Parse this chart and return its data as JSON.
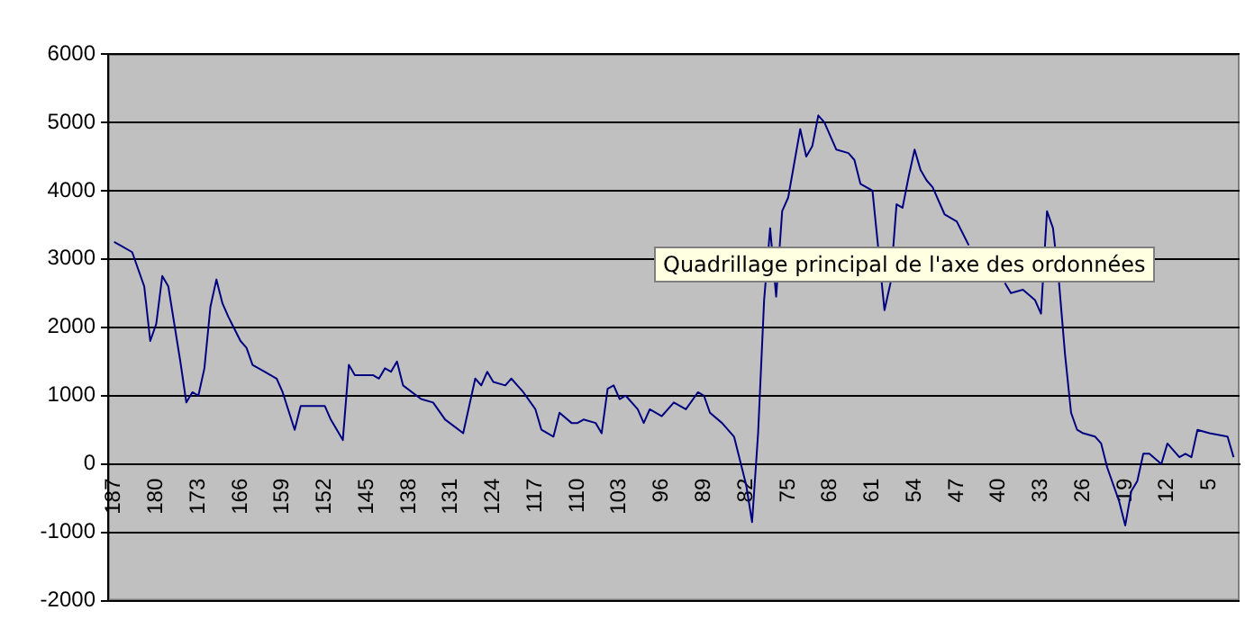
{
  "chart_data": {
    "type": "line",
    "annotations": [
      "Quadrillage principal de l'axe des ordonnées"
    ],
    "x": [
      187,
      186,
      184,
      183,
      182,
      181,
      180,
      179,
      178,
      177,
      176,
      175,
      174,
      173,
      172,
      171,
      170,
      169,
      168,
      166,
      165,
      164,
      162,
      160,
      159,
      157,
      156,
      154,
      152,
      151,
      149,
      148,
      147,
      144,
      143,
      142,
      141,
      140,
      139,
      136,
      134,
      132,
      129,
      127,
      126,
      125,
      124,
      122,
      121,
      120,
      119,
      117,
      116,
      114,
      113,
      111,
      110,
      109,
      107,
      106,
      105,
      104,
      103,
      102,
      100,
      99,
      98,
      96,
      94,
      92,
      90,
      89,
      88,
      86,
      84,
      83,
      82,
      81,
      80,
      79,
      78,
      77,
      76,
      75,
      73,
      72,
      71,
      70,
      69,
      67,
      65,
      64,
      63,
      61,
      59,
      58,
      57,
      56,
      55,
      54,
      53,
      52,
      51,
      49,
      47,
      45,
      43,
      41,
      39,
      38,
      36,
      34,
      33,
      32,
      31,
      30,
      29,
      28,
      27,
      26,
      24,
      23,
      22,
      20,
      19,
      18,
      17,
      16,
      15,
      13,
      12,
      10,
      9,
      8,
      7,
      5,
      2,
      1
    ],
    "series": [
      {
        "color": "#000080",
        "values": [
          3250,
          3200,
          3100,
          2850,
          2600,
          1800,
          2050,
          2750,
          2600,
          2050,
          1500,
          900,
          1050,
          1000,
          1400,
          2300,
          2700,
          2350,
          2150,
          1800,
          1700,
          1450,
          1350,
          1250,
          1050,
          500,
          850,
          850,
          850,
          650,
          350,
          1450,
          1300,
          1300,
          1250,
          1400,
          1350,
          1500,
          1150,
          950,
          900,
          650,
          450,
          1250,
          1150,
          1350,
          1200,
          1150,
          1250,
          1150,
          1050,
          800,
          500,
          400,
          750,
          600,
          600,
          650,
          600,
          450,
          1100,
          1150,
          950,
          1000,
          800,
          600,
          800,
          700,
          900,
          800,
          1050,
          1000,
          750,
          600,
          400,
          50,
          -300,
          -850,
          450,
          2400,
          3450,
          2450,
          3700,
          3900,
          4900,
          4500,
          4650,
          5100,
          5000,
          4600,
          4550,
          4450,
          4100,
          4000,
          2250,
          2650,
          3800,
          3750,
          4200,
          4600,
          4300,
          4150,
          4050,
          3650,
          3550,
          3200,
          null,
          null,
          2650,
          2500,
          2550,
          2400,
          2200,
          3700,
          3450,
          2650,
          1600,
          750,
          500,
          450,
          400,
          300,
          -50,
          -550,
          -900,
          -400,
          -250,
          150,
          150,
          0,
          300,
          100,
          150,
          100,
          500,
          450,
          400,
          100
        ]
      }
    ],
    "xlim": [
      188,
      0
    ],
    "xticks": [
      187,
      180,
      173,
      166,
      159,
      152,
      145,
      138,
      131,
      124,
      117,
      110,
      103,
      96,
      89,
      82,
      75,
      68,
      61,
      54,
      47,
      40,
      33,
      26,
      19,
      12,
      5
    ],
    "ylim": [
      -2000,
      6000
    ],
    "yticks": [
      -2000,
      -1000,
      0,
      1000,
      2000,
      3000,
      4000,
      5000,
      6000
    ],
    "grid": "y",
    "legend": false,
    "marker": "none",
    "line_style": "solid"
  }
}
